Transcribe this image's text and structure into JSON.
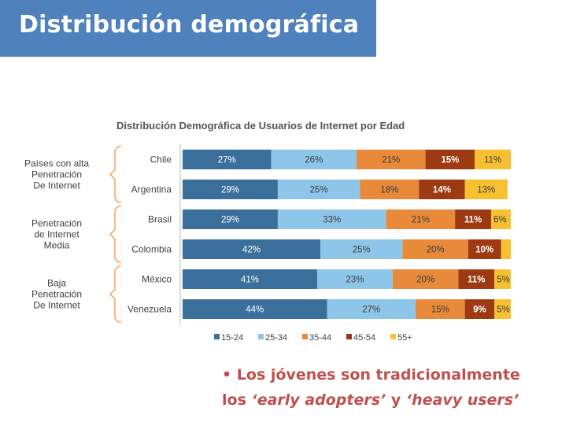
{
  "slide": {
    "title": "Distribución demográfica"
  },
  "note": {
    "bullet": "•",
    "line1": "Los jóvenes son tradicionalmente",
    "line2_a": "los ",
    "line2_b": "‘early adopters’",
    "line2_c": " y ",
    "line2_d": "‘heavy users’"
  },
  "colors": {
    "title_bar": "#4f81bd",
    "note_text": "#c0504d",
    "brackets": "#f5a96a"
  },
  "chart_data": {
    "type": "bar",
    "orientation": "horizontal",
    "stacked": true,
    "title": "Distribución Demográfica de Usuarios de Internet  por Edad",
    "categories": [
      "Chile",
      "Argentina",
      "Brasil",
      "Colombia",
      "México",
      "Venezuela"
    ],
    "groups": [
      {
        "label": [
          "Países con alta",
          "Penetración",
          "De Internet"
        ],
        "categories": [
          "Chile",
          "Argentina"
        ]
      },
      {
        "label": [
          "Penetración",
          "de Internet",
          "Media"
        ],
        "categories": [
          "Brasil",
          "Colombia"
        ]
      },
      {
        "label": [
          "Baja",
          "Penetración",
          "De Internet"
        ],
        "categories": [
          "México",
          "Venezuela"
        ]
      }
    ],
    "series": [
      {
        "name": "15-24",
        "color": "#3a6f9c",
        "values": [
          27,
          29,
          29,
          42,
          41,
          44
        ],
        "labels": [
          "27%",
          "29%",
          "29%",
          "42%",
          "41%",
          "44%"
        ]
      },
      {
        "name": "25-34",
        "color": "#8ec6ea",
        "values": [
          26,
          25,
          33,
          25,
          23,
          27
        ],
        "labels": [
          "26%",
          "25%",
          "33%",
          "25%",
          "23%",
          "27%"
        ]
      },
      {
        "name": "35-44",
        "color": "#e9893a",
        "values": [
          21,
          18,
          21,
          20,
          20,
          15
        ],
        "labels": [
          "21%",
          "18%",
          "21%",
          "20%",
          "20%",
          "15%"
        ]
      },
      {
        "name": "45-54",
        "color": "#9e3a12",
        "values": [
          15,
          14,
          11,
          10,
          11,
          9
        ],
        "labels": [
          "15%",
          "14%",
          "11%",
          "10%",
          "11%",
          "9%"
        ]
      },
      {
        "name": "55+",
        "color": "#f6c030",
        "values": [
          11,
          13,
          6,
          3,
          5,
          5
        ],
        "labels": [
          "11%",
          "13%",
          "6%",
          "",
          "5%",
          "5%"
        ]
      }
    ],
    "xlim": [
      0,
      100
    ],
    "legend_position": "bottom",
    "grid": false
  }
}
